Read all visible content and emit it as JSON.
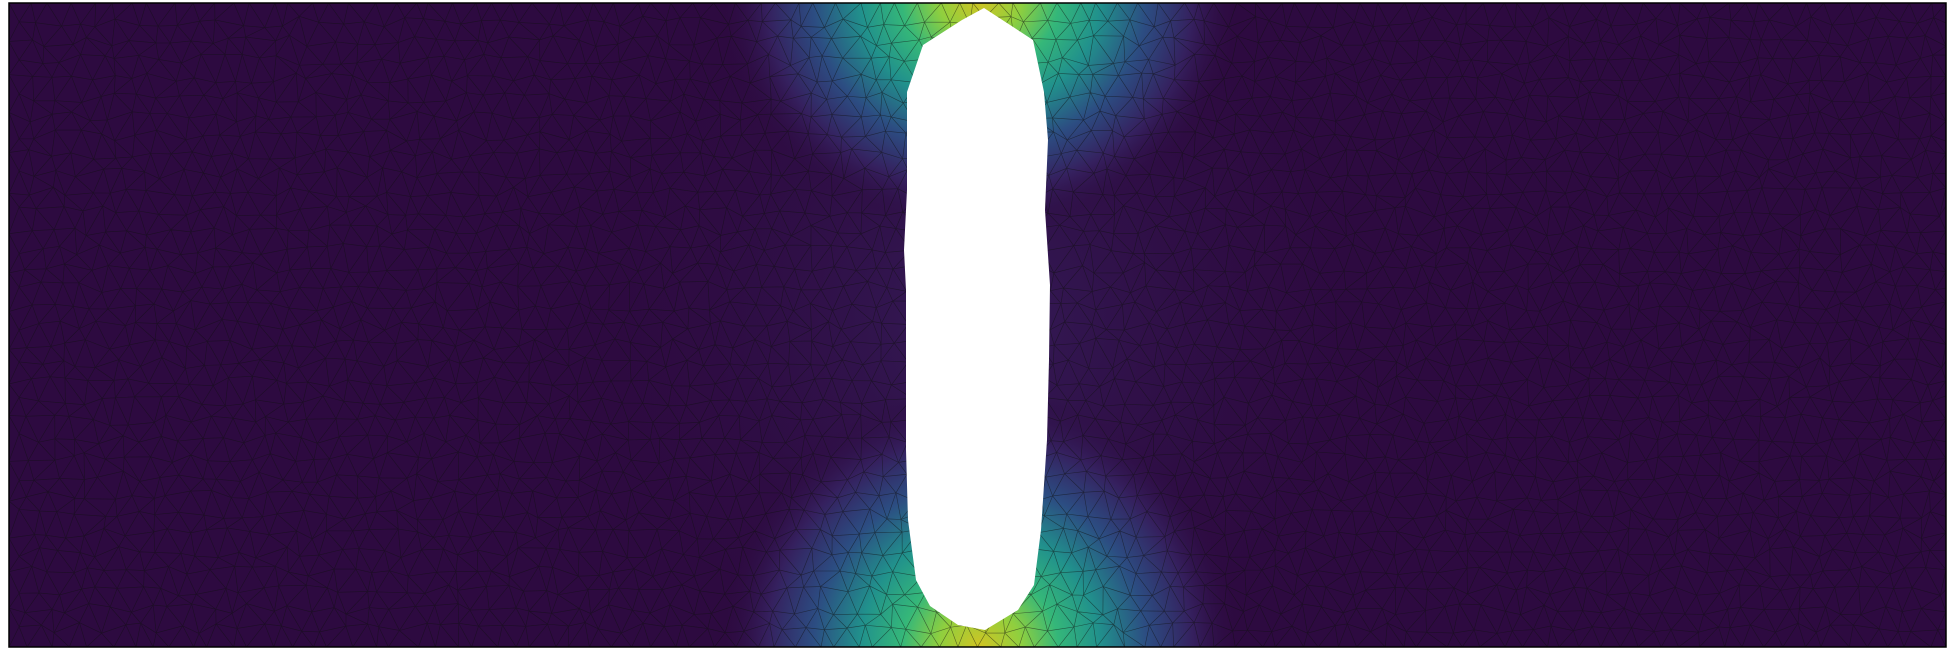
{
  "figure": {
    "colormap": "viridis",
    "background": "#ffffff",
    "mesh_line_color": "#111111",
    "domain_border_color": "#000000",
    "palette": {
      "deep": "#2d0a40",
      "indigo": "#35205e",
      "blue": "#2c4d82",
      "teal": "#21918c",
      "green": "#35b779",
      "yellow": "#d2c422"
    }
  }
}
